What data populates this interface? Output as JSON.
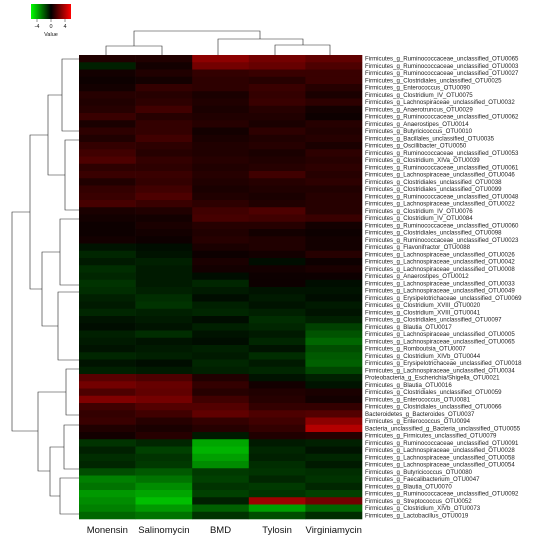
{
  "chart_data": {
    "type": "heatmap",
    "columns": [
      "Monensin",
      "Salinomycin",
      "BMD",
      "Tylosin",
      "Virginiamycin"
    ],
    "rows": [
      "Firmicutes_g_Ruminococcaceae_unclassified_OTU0065",
      "Firmicutes_g_Ruminococcaceae_unclassified_OTU0003",
      "Firmicutes_g_Ruminococcaceae_unclassified_OTU0027",
      "Firmicutes_g_Clostridiales_unclassified_OTU0025",
      "Firmicutes_g_Enterococcus_OTU0090",
      "Firmicutes_g_Clostridium_IV_OTU0075",
      "Firmicutes_g_Lachnospiraceae_unclassified_OTU0032",
      "Firmicutes_g_Anaerotruncus_OTU0029",
      "Firmicutes_g_Ruminococcaceae_unclassified_OTU0062",
      "Firmicutes_g_Anaerostipes_OTU0014",
      "Firmicutes_g_Butyricicoccus_OTU0010",
      "Firmicutes_g_Bacillales_unclassified_OTU0035",
      "Firmicutes_g_Oscillibacter_OTU0050",
      "Firmicutes_g_Ruminococcaceae_unclassified_OTU0053",
      "Firmicutes_g_Clostridium_XIVa_OTU0039",
      "Firmicutes_g_Ruminococcaceae_unclassified_OTU0061",
      "Firmicutes_g_Lachnospiraceae_unclassified_OTU0046",
      "Firmicutes_g_Clostridiales_unclassified_OTU0038",
      "Firmicutes_g_Clostridiales_unclassified_OTU0099",
      "Firmicutes_g_Ruminococcaceae_unclassified_OTU0048",
      "Firmicutes_g_Lachnospiraceae_unclassified_OTU0022",
      "Firmicutes_g_Clostridium_IV_OTU0076",
      "Firmicutes_g_Clostridium_IV_OTU0084",
      "Firmicutes_g_Ruminococcaceae_unclassified_OTU0060",
      "Firmicutes_g_Clostridiales_unclassified_OTU0098",
      "Firmicutes_g_Ruminococcaceae_unclassified_OTU0023",
      "Firmicutes_g_Flavonifractor_OTU0088",
      "Firmicutes_g_Lachnospiraceae_unclassified_OTU0026",
      "Firmicutes_g_Lachnospiraceae_unclassified_OTU0042",
      "Firmicutes_g_Lachnospiraceae_unclassified_OTU0008",
      "Firmicutes_g_Anaerostipes_OTU0012",
      "Firmicutes_g_Lachnospiraceae_unclassified_OTU0033",
      "Firmicutes_g_Lachnospiraceae_unclassified_OTU0049",
      "Firmicutes_g_Erysipelotrichaceae_unclassified_OTU0069",
      "Firmicutes_g_Clostridium_XVIII_OTU0020",
      "Firmicutes_g_Clostridium_XVIII_OTU0041",
      "Firmicutes_g_Clostridiales_unclassified_OTU0097",
      "Firmicutes_g_Blautia_OTU0017",
      "Firmicutes_g_Lachnospiraceae_unclassified_OTU0005",
      "Firmicutes_g_Lachnospiraceae_unclassified_OTU0065",
      "Firmicutes_g_Romboutsia_OTU0007",
      "Firmicutes_g_Clostridium_XIVb_OTU0044",
      "Firmicutes_g_Erysipelotrichaceae_unclassified_OTU0018",
      "Firmicutes_g_Lachnospiraceae_unclassified_OTU0034",
      "Proteobacteria_g_Escherichia/Shigella_OTU0021",
      "Firmicutes_g_Blautia_OTU0016",
      "Firmicutes_g_Clostridiales_unclassified_OTU0059",
      "Firmicutes_g_Enterococcus_OTU0081",
      "Firmicutes_g_Clostridiales_unclassified_OTU0066",
      "Bacteroidetes_g_Bacteroides_OTU0037",
      "Firmicutes_g_Enterococcus_OTU0094",
      "Bacteria_unclassified_g_Bacteria_unclassified_OTU0055",
      "Firmicutes_g_Firmicutes_unclassified_OTU0079",
      "Firmicutes_g_Ruminococcaceae_unclassified_OTU0091",
      "Firmicutes_g_Lachnospiraceae_unclassified_OTU0028",
      "Firmicutes_g_Lachnospiraceae_unclassified_OTU0058",
      "Firmicutes_g_Lachnospiraceae_unclassified_OTU0054",
      "Firmicutes_g_Butyricicoccus_OTU0080",
      "Firmicutes_g_Faecalibacterium_OTU0047",
      "Firmicutes_g_Blautia_OTU0070",
      "Firmicutes_g_Ruminococcaceae_unclassified_OTU0092",
      "Firmicutes_g_Streptococcus_OTU0052",
      "Firmicutes_g_Clostridium_XIVb_OTU0073",
      "Firmicutes_g_Lactobacillus_OTU0019"
    ],
    "values": [
      [
        0.5,
        0.5,
        2.2,
        1.8,
        1.5
      ],
      [
        -0.5,
        0.3,
        1.8,
        1.6,
        1.2
      ],
      [
        0.3,
        0.5,
        0.8,
        0.9,
        0.9
      ],
      [
        0.2,
        0.3,
        0.7,
        0.6,
        0.9
      ],
      [
        0.3,
        0.8,
        0.7,
        0.9,
        0.6
      ],
      [
        0.6,
        0.6,
        0.4,
        0.8,
        0.4
      ],
      [
        0.5,
        0.7,
        0.5,
        0.9,
        0.7
      ],
      [
        0.6,
        1.0,
        0.4,
        0.6,
        0.3
      ],
      [
        0.9,
        0.6,
        0.5,
        0.5,
        0.2
      ],
      [
        0.4,
        0.8,
        0.6,
        0.4,
        0.6
      ],
      [
        0.7,
        0.8,
        0.3,
        0.7,
        0.5
      ],
      [
        0.5,
        1.0,
        0.4,
        0.5,
        0.6
      ],
      [
        0.8,
        0.7,
        0.5,
        0.6,
        0.4
      ],
      [
        1.0,
        0.6,
        0.5,
        0.4,
        0.7
      ],
      [
        1.2,
        0.8,
        0.6,
        0.5,
        0.6
      ],
      [
        0.7,
        0.7,
        0.5,
        0.6,
        0.7
      ],
      [
        0.9,
        0.9,
        0.6,
        1.0,
        0.6
      ],
      [
        0.5,
        0.8,
        0.5,
        0.6,
        0.7
      ],
      [
        0.8,
        1.0,
        0.4,
        0.5,
        0.5
      ],
      [
        0.9,
        1.2,
        0.5,
        0.4,
        0.6
      ],
      [
        1.1,
        0.9,
        0.7,
        0.5,
        0.6
      ],
      [
        0.4,
        0.5,
        1.0,
        1.2,
        0.6
      ],
      [
        0.3,
        0.3,
        1.1,
        1.0,
        0.9
      ],
      [
        0.2,
        0.4,
        0.6,
        0.6,
        0.3
      ],
      [
        0.2,
        0.3,
        0.5,
        0.3,
        0.2
      ],
      [
        0.3,
        0.2,
        0.6,
        0.5,
        0.3
      ],
      [
        -0.3,
        -0.2,
        0.4,
        0.5,
        0.3
      ],
      [
        -0.6,
        -0.3,
        0.2,
        0.3,
        0.6
      ],
      [
        -0.4,
        -0.5,
        0.4,
        -0.2,
        0.2
      ],
      [
        -0.7,
        -0.4,
        0.3,
        0.3,
        0.4
      ],
      [
        -0.6,
        -0.4,
        -0.2,
        0.2,
        0.2
      ],
      [
        -0.8,
        -0.4,
        -0.6,
        0.2,
        -0.2
      ],
      [
        -0.7,
        -0.5,
        -0.4,
        -0.3,
        -0.3
      ],
      [
        -0.5,
        -0.7,
        -0.2,
        -0.4,
        -0.2
      ],
      [
        -0.4,
        -0.8,
        -0.5,
        -0.3,
        -0.4
      ],
      [
        -0.6,
        -0.5,
        -0.6,
        -0.5,
        -0.3
      ],
      [
        -0.3,
        -0.4,
        -0.2,
        -0.7,
        -0.5
      ],
      [
        -0.2,
        -0.3,
        -0.5,
        -0.6,
        -1.0
      ],
      [
        -0.5,
        -0.7,
        -0.3,
        -0.4,
        -1.3
      ],
      [
        -0.4,
        -0.3,
        -0.2,
        -0.6,
        -1.6
      ],
      [
        -0.3,
        -0.4,
        -0.5,
        -0.3,
        -1.2
      ],
      [
        -0.6,
        -0.5,
        -0.4,
        -0.7,
        -1.4
      ],
      [
        -0.3,
        -0.2,
        -0.6,
        -0.4,
        -1.5
      ],
      [
        -0.5,
        -0.4,
        -0.5,
        -0.6,
        -1.1
      ],
      [
        1.4,
        1.2,
        0.5,
        -0.3,
        -0.5
      ],
      [
        1.8,
        1.6,
        0.8,
        0.3,
        -0.3
      ],
      [
        1.2,
        1.5,
        0.6,
        0.5,
        0.4
      ],
      [
        2.0,
        1.8,
        1.0,
        0.6,
        0.3
      ],
      [
        1.0,
        1.3,
        1.3,
        0.8,
        0.8
      ],
      [
        0.8,
        1.0,
        1.5,
        1.2,
        1.3
      ],
      [
        0.9,
        0.6,
        0.8,
        1.0,
        2.2
      ],
      [
        0.5,
        0.4,
        0.6,
        0.8,
        2.8
      ],
      [
        0.3,
        0.6,
        -0.4,
        0.5,
        0.6
      ],
      [
        -0.8,
        -0.6,
        -2.6,
        -0.4,
        -0.5
      ],
      [
        -0.5,
        -1.0,
        -2.8,
        -0.6,
        -0.3
      ],
      [
        -0.7,
        -0.8,
        -2.5,
        -0.5,
        -0.6
      ],
      [
        -0.6,
        -0.9,
        -2.2,
        -0.7,
        -0.4
      ],
      [
        -1.2,
        -1.4,
        -0.9,
        -0.8,
        -0.7
      ],
      [
        -2.0,
        -1.8,
        -1.0,
        -0.6,
        -0.8
      ],
      [
        -1.8,
        -2.2,
        -0.8,
        -0.9,
        -0.6
      ],
      [
        -2.4,
        -2.6,
        -1.0,
        -0.8,
        -1.0
      ],
      [
        -2.2,
        -3.0,
        -0.5,
        2.5,
        1.8
      ],
      [
        -2.0,
        -2.4,
        -1.5,
        -2.5,
        -1.6
      ],
      [
        -1.6,
        -1.8,
        -0.8,
        -1.2,
        -0.7
      ]
    ],
    "scale": {
      "min": -4,
      "max": 4,
      "low_color": "#00ff00",
      "mid_color": "#000000",
      "high_color": "#ff0000"
    },
    "legend": {
      "ticks": [
        "-4",
        "0",
        "4"
      ],
      "label": "Value"
    }
  }
}
